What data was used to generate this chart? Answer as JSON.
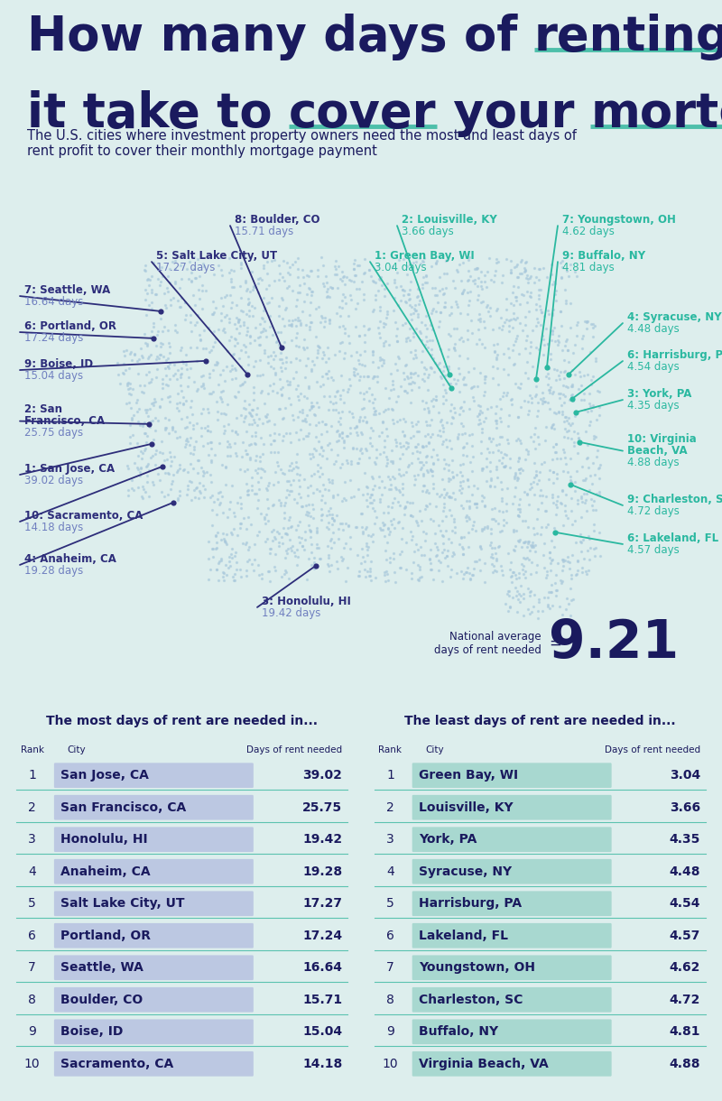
{
  "bg_color": "#ddeeed",
  "title_color": "#1a1a5e",
  "subtitle_color": "#1a1a5e",
  "underline_color": "#4dbfaa",
  "national_avg": "9.21",
  "national_avg_label1": "National average",
  "national_avg_label2": "days of rent needed",
  "most_cities": [
    {
      "rank": 1,
      "city": "San Jose, CA",
      "days": 39.02
    },
    {
      "rank": 2,
      "city": "San Francisco, CA",
      "days": 25.75
    },
    {
      "rank": 3,
      "city": "Honolulu, HI",
      "days": 19.42
    },
    {
      "rank": 4,
      "city": "Anaheim, CA",
      "days": 19.28
    },
    {
      "rank": 5,
      "city": "Salt Lake City, UT",
      "days": 17.27
    },
    {
      "rank": 6,
      "city": "Portland, OR",
      "days": 17.24
    },
    {
      "rank": 7,
      "city": "Seattle, WA",
      "days": 16.64
    },
    {
      "rank": 8,
      "city": "Boulder, CO",
      "days": 15.71
    },
    {
      "rank": 9,
      "city": "Boise, ID",
      "days": 15.04
    },
    {
      "rank": 10,
      "city": "Sacramento, CA",
      "days": 14.18
    }
  ],
  "least_cities": [
    {
      "rank": 1,
      "city": "Green Bay, WI",
      "days": 3.04
    },
    {
      "rank": 2,
      "city": "Louisville, KY",
      "days": 3.66
    },
    {
      "rank": 3,
      "city": "York, PA",
      "days": 4.35
    },
    {
      "rank": 4,
      "city": "Syracuse, NY",
      "days": 4.48
    },
    {
      "rank": 5,
      "city": "Harrisburg, PA",
      "days": 4.54
    },
    {
      "rank": 6,
      "city": "Lakeland, FL",
      "days": 4.57
    },
    {
      "rank": 7,
      "city": "Youngstown, OH",
      "days": 4.62
    },
    {
      "rank": 8,
      "city": "Charleston, SC",
      "days": 4.72
    },
    {
      "rank": 9,
      "city": "Buffalo, NY",
      "days": 4.81
    },
    {
      "rank": 10,
      "city": "Virginia Beach, VA",
      "days": 4.88
    }
  ],
  "most_color": "#2d2d7a",
  "most_days_color": "#7080c0",
  "least_color": "#2ab8a0",
  "least_days_color": "#2ab8a0",
  "table_header_color": "#1a1a5e",
  "most_bg": "#dde3f0",
  "least_bg": "#d0ece8",
  "row_bar_most": "#bcc8e2",
  "row_bar_least": "#a8d8d0",
  "divider_color": "#4dbfaa"
}
